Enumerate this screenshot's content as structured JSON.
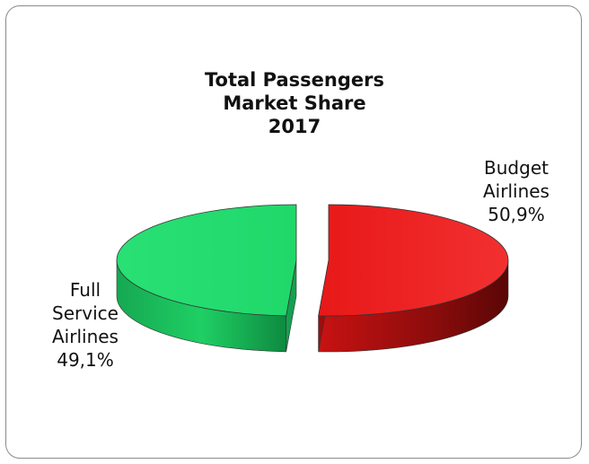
{
  "chart_data": {
    "type": "pie",
    "title": [
      "Total Passengers",
      "Market Share",
      "2017"
    ],
    "slices": [
      {
        "name": [
          "Budget",
          "Airlines"
        ],
        "value": 50.9,
        "value_label": "50,9%",
        "color": "#ee1e1e"
      },
      {
        "name": [
          "Full",
          "Service",
          "Airlines"
        ],
        "value": 49.1,
        "value_label": "49,1%",
        "color": "#22e070"
      }
    ],
    "style": "3d-exploded"
  }
}
